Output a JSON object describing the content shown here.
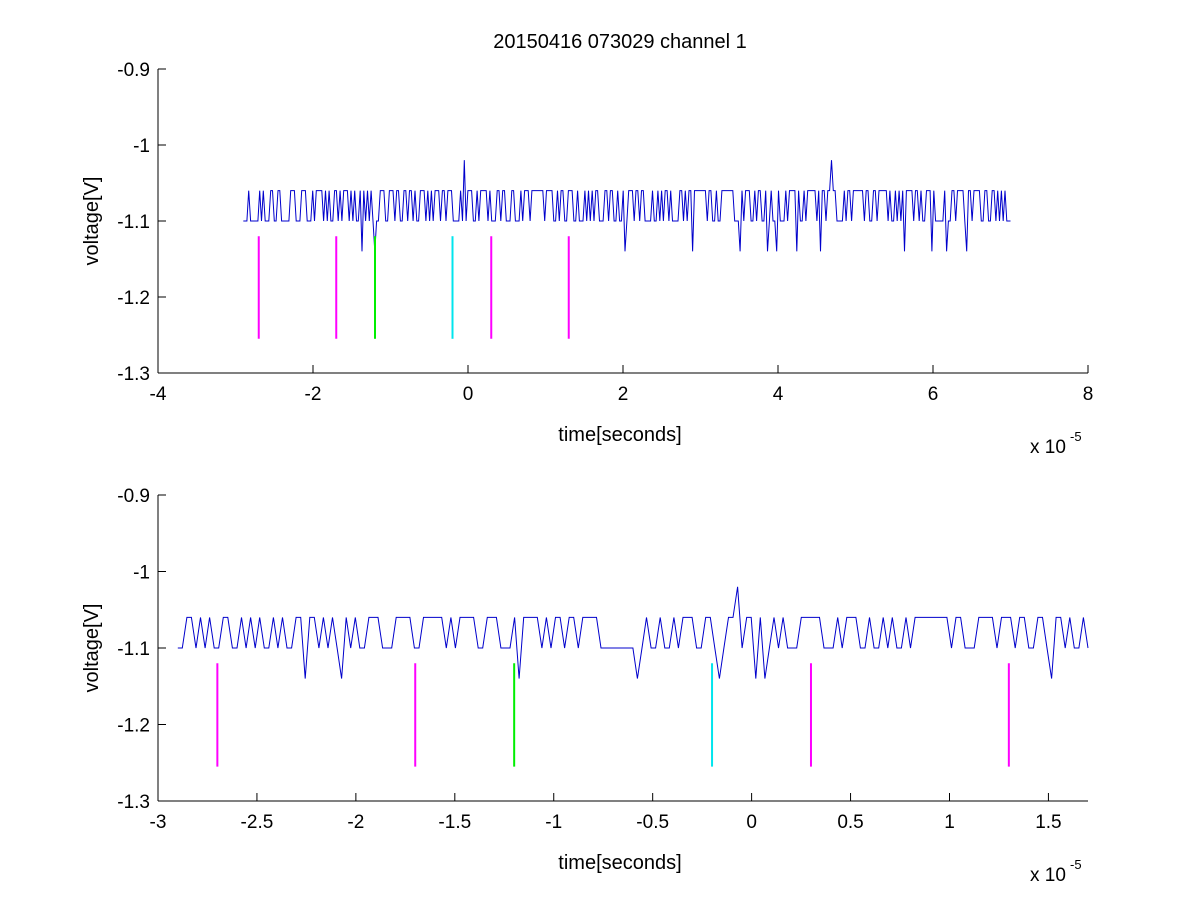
{
  "figure": {
    "title": "20150416 073029 channel 1"
  },
  "chart_data": [
    {
      "type": "line",
      "xlabel": "time[seconds]",
      "ylabel": "voltage[V]",
      "x_exponent_label": "x 10",
      "x_exponent": "-5",
      "xlim": [
        -4,
        8
      ],
      "ylim": [
        -1.3,
        -0.9
      ],
      "x_ticks": [
        -4,
        -2,
        0,
        2,
        4,
        6,
        8
      ],
      "x_tick_labels": [
        "-4",
        "-2",
        "0",
        "2",
        "4",
        "6",
        "8"
      ],
      "y_ticks": [
        -0.9,
        -1,
        -1.1,
        -1.2,
        -1.3
      ],
      "y_tick_labels": [
        "-0.9",
        "-1",
        "-1.1",
        "-1.2",
        "-1.3"
      ],
      "signal": {
        "color": "#0000cc",
        "x_start": -2.9,
        "x_end": 7.0,
        "baseline": -1.1,
        "levels": [
          -1.06,
          -1.1,
          -1.14
        ],
        "high_fraction": 0.55,
        "low_fraction": 0.035,
        "density": 420,
        "peaks": [
          {
            "x": -0.05,
            "y": -1.02
          },
          {
            "x": 4.7,
            "y": -1.02
          }
        ]
      },
      "markers": [
        {
          "x": -2.7,
          "y_top": -1.12,
          "y_bottom": -1.255,
          "color": "#ff00ff"
        },
        {
          "x": -1.7,
          "y_top": -1.12,
          "y_bottom": -1.255,
          "color": "#ff00ff"
        },
        {
          "x": -1.2,
          "y_top": -1.12,
          "y_bottom": -1.255,
          "color": "#00ee00"
        },
        {
          "x": -0.2,
          "y_top": -1.12,
          "y_bottom": -1.255,
          "color": "#00e5ee"
        },
        {
          "x": 0.3,
          "y_top": -1.12,
          "y_bottom": -1.255,
          "color": "#ff00ff"
        },
        {
          "x": 1.3,
          "y_top": -1.12,
          "y_bottom": -1.255,
          "color": "#ff00ff"
        }
      ],
      "grid": false
    },
    {
      "type": "line",
      "xlabel": "time[seconds]",
      "ylabel": "voltage[V]",
      "x_exponent_label": "x 10",
      "x_exponent": "-5",
      "xlim": [
        -3.0,
        1.7
      ],
      "ylim": [
        -1.3,
        -0.9
      ],
      "x_ticks": [
        -3,
        -2.5,
        -2,
        -1.5,
        -1,
        -0.5,
        0,
        0.5,
        1,
        1.5
      ],
      "x_tick_labels": [
        "-3",
        "-2.5",
        "-2",
        "-1.5",
        "-1",
        "-0.5",
        "0",
        "0.5",
        "1",
        "1.5"
      ],
      "y_ticks": [
        -0.9,
        -1,
        -1.1,
        -1.2,
        -1.3
      ],
      "y_tick_labels": [
        "-0.9",
        "-1",
        "-1.1",
        "-1.2",
        "-1.3"
      ],
      "signal": {
        "color": "#0000cc",
        "x_start": -2.9,
        "x_end": 1.7,
        "baseline": -1.1,
        "levels": [
          -1.06,
          -1.1,
          -1.14
        ],
        "high_fraction": 0.55,
        "low_fraction": 0.035,
        "density": 200,
        "peaks": [
          {
            "x": -0.07,
            "y": -1.02
          }
        ]
      },
      "markers": [
        {
          "x": -2.7,
          "y_top": -1.12,
          "y_bottom": -1.255,
          "color": "#ff00ff"
        },
        {
          "x": -1.7,
          "y_top": -1.12,
          "y_bottom": -1.255,
          "color": "#ff00ff"
        },
        {
          "x": -1.2,
          "y_top": -1.12,
          "y_bottom": -1.255,
          "color": "#00ee00"
        },
        {
          "x": -0.2,
          "y_top": -1.12,
          "y_bottom": -1.255,
          "color": "#00e5ee"
        },
        {
          "x": 0.3,
          "y_top": -1.12,
          "y_bottom": -1.255,
          "color": "#ff00ff"
        },
        {
          "x": 1.3,
          "y_top": -1.12,
          "y_bottom": -1.255,
          "color": "#ff00ff"
        }
      ],
      "grid": false
    }
  ]
}
